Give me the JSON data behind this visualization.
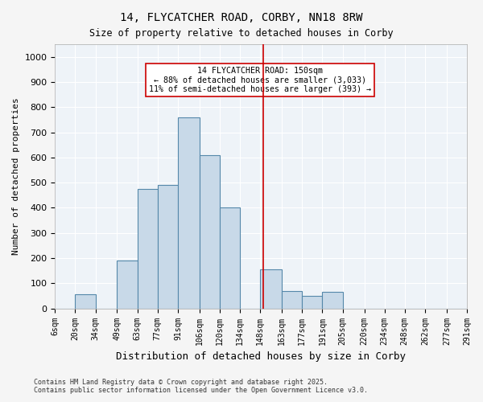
{
  "title_line1": "14, FLYCATCHER ROAD, CORBY, NN18 8RW",
  "title_line2": "Size of property relative to detached houses in Corby",
  "xlabel": "Distribution of detached houses by size in Corby",
  "ylabel": "Number of detached properties",
  "footer_line1": "Contains HM Land Registry data © Crown copyright and database right 2025.",
  "footer_line2": "Contains public sector information licensed under the Open Government Licence v3.0.",
  "annotation_line1": "14 FLYCATCHER ROAD: 150sqm",
  "annotation_line2": "← 88% of detached houses are smaller (3,033)",
  "annotation_line3": "11% of semi-detached houses are larger (393) →",
  "property_size": 150,
  "bar_edges": [
    6,
    20,
    34,
    49,
    63,
    77,
    91,
    106,
    120,
    134,
    148,
    163,
    177,
    191,
    205,
    220,
    234,
    248,
    262,
    277,
    291
  ],
  "bar_heights": [
    0,
    55,
    0,
    190,
    475,
    490,
    760,
    610,
    400,
    0,
    155,
    70,
    50,
    65,
    0,
    0,
    0,
    0,
    0,
    0
  ],
  "bar_color": "#c8d9e8",
  "bar_edge_color": "#5588aa",
  "vline_color": "#cc0000",
  "vline_x": 150,
  "annotation_box_color": "#cc0000",
  "background_color": "#eef3f8",
  "grid_color": "#ffffff",
  "ylim": [
    0,
    1050
  ],
  "yticks": [
    0,
    100,
    200,
    300,
    400,
    500,
    600,
    700,
    800,
    900,
    1000
  ]
}
